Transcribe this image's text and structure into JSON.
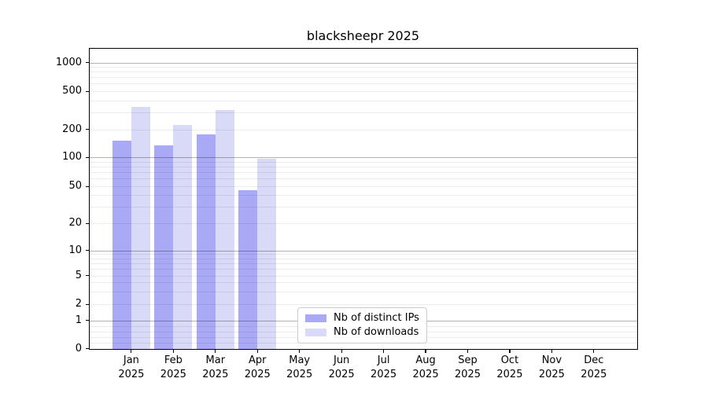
{
  "chart_data": {
    "type": "bar",
    "title": "blacksheepr 2025",
    "year": "2025",
    "categories": [
      "Jan",
      "Feb",
      "Mar",
      "Apr",
      "May",
      "Jun",
      "Jul",
      "Aug",
      "Sep",
      "Oct",
      "Nov",
      "Dec"
    ],
    "series": [
      {
        "name": "Nb of distinct IPs",
        "color": "#a9a9f5",
        "values": [
          150,
          135,
          175,
          45,
          null,
          null,
          null,
          null,
          null,
          null,
          null,
          null
        ]
      },
      {
        "name": "Nb of downloads",
        "color": "#d9d9f8",
        "values": [
          340,
          220,
          315,
          96,
          null,
          null,
          null,
          null,
          null,
          null,
          null,
          null
        ]
      }
    ],
    "yscale": "symlog",
    "ytick_values": [
      0,
      1,
      2,
      5,
      10,
      20,
      50,
      100,
      200,
      500,
      1000
    ],
    "ytick_labels": [
      "0",
      "1",
      "2",
      "5",
      "10",
      "20",
      "50",
      "100",
      "200",
      "500",
      "1000"
    ],
    "ylim": [
      0,
      1400
    ],
    "xlabel": "",
    "ylabel": "",
    "grid": true,
    "legend_position": "lower-center-left",
    "colors": {
      "background": "#ffffff",
      "spine": "#000000",
      "grid_major": "#b3b3b3",
      "grid_minor": "#ececec",
      "text": "#000000"
    }
  }
}
